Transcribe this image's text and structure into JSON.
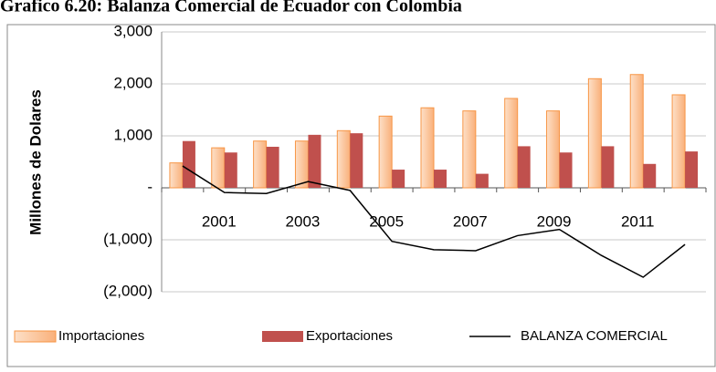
{
  "chart_data": {
    "type": "bar-line",
    "title": "Grafico 6.20: Balanza Comercial de Ecuador con Colombia",
    "y_label": "Millones de Dolares",
    "categories": [
      null,
      "2001",
      null,
      "2003",
      null,
      "2005",
      null,
      "2007",
      null,
      "2009",
      null,
      "2011",
      null
    ],
    "series": [
      {
        "name": "Importaciones",
        "type": "bar",
        "color": "#fbc59b",
        "values": [
          480,
          770,
          900,
          900,
          1100,
          1380,
          1540,
          1480,
          1720,
          1480,
          2100,
          2180,
          1790
        ]
      },
      {
        "name": "Exportaciones",
        "type": "bar",
        "color": "#c0504d",
        "values": [
          900,
          680,
          790,
          1020,
          1050,
          350,
          350,
          270,
          800,
          680,
          800,
          460,
          700
        ]
      },
      {
        "name": "BALANZA COMERCIAL",
        "type": "line",
        "color": "#000000",
        "values": [
          420,
          -90,
          -110,
          120,
          -50,
          -1030,
          -1190,
          -1210,
          -920,
          -800,
          -1300,
          -1720,
          -1090
        ]
      }
    ],
    "ylim": [
      -2000,
      3000
    ],
    "yticks": [
      {
        "value": -2000,
        "label": "(2,000)"
      },
      {
        "value": -1000,
        "label": "(1,000)"
      },
      {
        "value": 0,
        "label": "-"
      },
      {
        "value": 1000,
        "label": "1,000"
      },
      {
        "value": 2000,
        "label": "2,000"
      },
      {
        "value": 3000,
        "label": "3,000"
      }
    ],
    "grid": true
  }
}
